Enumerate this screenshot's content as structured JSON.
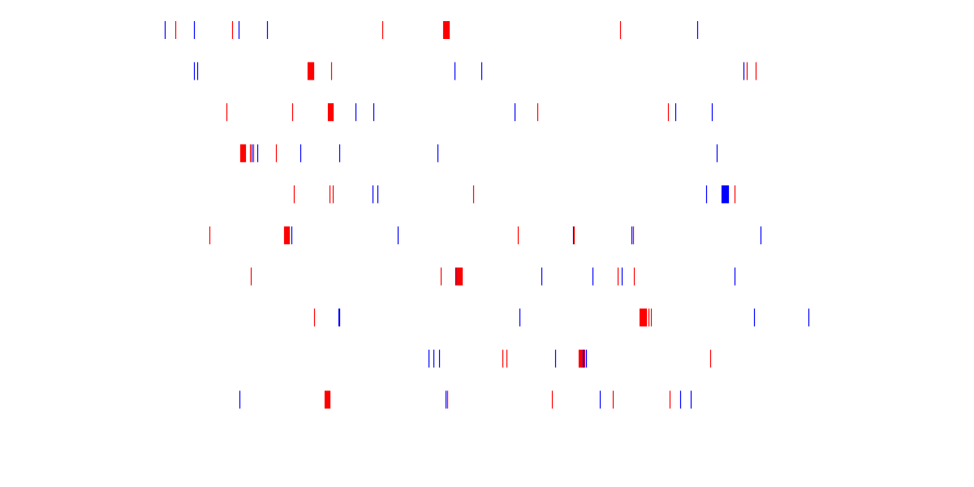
{
  "chart_data": {
    "type": "event-raster",
    "axes_visible": false,
    "grid": false,
    "xlim": [
      0,
      1200
    ],
    "colors": {
      "red": "#ff0000",
      "blue": "#0000ff"
    },
    "rows": [
      {
        "row": 1,
        "events": [
          {
            "x": 203,
            "color": "blue"
          },
          {
            "x": 216,
            "color": "red"
          },
          {
            "x": 239,
            "color": "blue"
          },
          {
            "x": 286,
            "color": "red"
          },
          {
            "x": 294,
            "color": "blue"
          },
          {
            "x": 329,
            "color": "blue"
          },
          {
            "x": 471,
            "color": "red"
          },
          {
            "x": 546,
            "color": "red"
          },
          {
            "x": 547,
            "color": "red"
          },
          {
            "x": 548,
            "color": "red"
          },
          {
            "x": 549,
            "color": "red"
          },
          {
            "x": 550,
            "color": "red"
          },
          {
            "x": 551,
            "color": "red"
          },
          {
            "x": 552,
            "color": "red"
          },
          {
            "x": 553,
            "color": "red"
          },
          {
            "x": 764,
            "color": "red"
          },
          {
            "x": 859,
            "color": "blue"
          }
        ]
      },
      {
        "row": 2,
        "events": [
          {
            "x": 239,
            "color": "blue"
          },
          {
            "x": 243,
            "color": "blue"
          },
          {
            "x": 379,
            "color": "red"
          },
          {
            "x": 380,
            "color": "red"
          },
          {
            "x": 381,
            "color": "red"
          },
          {
            "x": 382,
            "color": "red"
          },
          {
            "x": 383,
            "color": "red"
          },
          {
            "x": 384,
            "color": "red"
          },
          {
            "x": 385,
            "color": "red"
          },
          {
            "x": 386,
            "color": "red"
          },
          {
            "x": 408,
            "color": "red"
          },
          {
            "x": 560,
            "color": "blue"
          },
          {
            "x": 593,
            "color": "blue"
          },
          {
            "x": 916,
            "color": "blue"
          },
          {
            "x": 920,
            "color": "red"
          },
          {
            "x": 931,
            "color": "red"
          }
        ]
      },
      {
        "row": 3,
        "events": [
          {
            "x": 279,
            "color": "red"
          },
          {
            "x": 360,
            "color": "red"
          },
          {
            "x": 404,
            "color": "red"
          },
          {
            "x": 405,
            "color": "red"
          },
          {
            "x": 406,
            "color": "red"
          },
          {
            "x": 407,
            "color": "red"
          },
          {
            "x": 408,
            "color": "red"
          },
          {
            "x": 409,
            "color": "red"
          },
          {
            "x": 410,
            "color": "red"
          },
          {
            "x": 438,
            "color": "blue"
          },
          {
            "x": 460,
            "color": "blue"
          },
          {
            "x": 634,
            "color": "blue"
          },
          {
            "x": 662,
            "color": "red"
          },
          {
            "x": 823,
            "color": "red"
          },
          {
            "x": 832,
            "color": "blue"
          },
          {
            "x": 877,
            "color": "blue"
          }
        ]
      },
      {
        "row": 4,
        "events": [
          {
            "x": 296,
            "color": "red"
          },
          {
            "x": 297,
            "color": "red"
          },
          {
            "x": 298,
            "color": "red"
          },
          {
            "x": 299,
            "color": "red"
          },
          {
            "x": 300,
            "color": "red"
          },
          {
            "x": 301,
            "color": "red"
          },
          {
            "x": 302,
            "color": "red"
          },
          {
            "x": 308,
            "color": "red"
          },
          {
            "x": 310,
            "color": "blue"
          },
          {
            "x": 312,
            "color": "red"
          },
          {
            "x": 317,
            "color": "blue"
          },
          {
            "x": 340,
            "color": "red"
          },
          {
            "x": 370,
            "color": "blue"
          },
          {
            "x": 418,
            "color": "blue"
          },
          {
            "x": 539,
            "color": "blue"
          },
          {
            "x": 883,
            "color": "blue"
          }
        ]
      },
      {
        "row": 5,
        "events": [
          {
            "x": 362,
            "color": "red"
          },
          {
            "x": 406,
            "color": "red"
          },
          {
            "x": 410,
            "color": "red"
          },
          {
            "x": 459,
            "color": "blue"
          },
          {
            "x": 465,
            "color": "blue"
          },
          {
            "x": 583,
            "color": "red"
          },
          {
            "x": 870,
            "color": "blue"
          },
          {
            "x": 889,
            "color": "blue"
          },
          {
            "x": 890,
            "color": "blue"
          },
          {
            "x": 891,
            "color": "blue"
          },
          {
            "x": 892,
            "color": "blue"
          },
          {
            "x": 893,
            "color": "blue"
          },
          {
            "x": 894,
            "color": "blue"
          },
          {
            "x": 895,
            "color": "blue"
          },
          {
            "x": 896,
            "color": "blue"
          },
          {
            "x": 897,
            "color": "blue"
          },
          {
            "x": 905,
            "color": "red"
          }
        ]
      },
      {
        "row": 6,
        "events": [
          {
            "x": 258,
            "color": "red"
          },
          {
            "x": 350,
            "color": "red"
          },
          {
            "x": 351,
            "color": "red"
          },
          {
            "x": 352,
            "color": "red"
          },
          {
            "x": 353,
            "color": "red"
          },
          {
            "x": 354,
            "color": "red"
          },
          {
            "x": 355,
            "color": "red"
          },
          {
            "x": 356,
            "color": "red"
          },
          {
            "x": 359,
            "color": "blue"
          },
          {
            "x": 490,
            "color": "blue"
          },
          {
            "x": 638,
            "color": "red"
          },
          {
            "x": 706,
            "color": "blue"
          },
          {
            "x": 707,
            "color": "red"
          },
          {
            "x": 778,
            "color": "blue"
          },
          {
            "x": 780,
            "color": "red"
          },
          {
            "x": 937,
            "color": "blue"
          }
        ]
      },
      {
        "row": 7,
        "events": [
          {
            "x": 309,
            "color": "red"
          },
          {
            "x": 543,
            "color": "red"
          },
          {
            "x": 561,
            "color": "blue"
          },
          {
            "x": 562,
            "color": "red"
          },
          {
            "x": 563,
            "color": "red"
          },
          {
            "x": 564,
            "color": "red"
          },
          {
            "x": 565,
            "color": "red"
          },
          {
            "x": 566,
            "color": "red"
          },
          {
            "x": 567,
            "color": "red"
          },
          {
            "x": 568,
            "color": "red"
          },
          {
            "x": 569,
            "color": "red"
          },
          {
            "x": 667,
            "color": "blue"
          },
          {
            "x": 730,
            "color": "blue"
          },
          {
            "x": 761,
            "color": "red"
          },
          {
            "x": 766,
            "color": "blue"
          },
          {
            "x": 781,
            "color": "red"
          },
          {
            "x": 905,
            "color": "blue"
          }
        ]
      },
      {
        "row": 8,
        "events": [
          {
            "x": 387,
            "color": "red"
          },
          {
            "x": 417,
            "color": "blue"
          },
          {
            "x": 418,
            "color": "blue"
          },
          {
            "x": 640,
            "color": "blue"
          },
          {
            "x": 788,
            "color": "red"
          },
          {
            "x": 789,
            "color": "red"
          },
          {
            "x": 790,
            "color": "red"
          },
          {
            "x": 791,
            "color": "red"
          },
          {
            "x": 792,
            "color": "red"
          },
          {
            "x": 793,
            "color": "red"
          },
          {
            "x": 794,
            "color": "red"
          },
          {
            "x": 795,
            "color": "red"
          },
          {
            "x": 796,
            "color": "red"
          },
          {
            "x": 799,
            "color": "red"
          },
          {
            "x": 802,
            "color": "red"
          },
          {
            "x": 929,
            "color": "blue"
          },
          {
            "x": 996,
            "color": "blue"
          }
        ]
      },
      {
        "row": 9,
        "events": [
          {
            "x": 528,
            "color": "blue"
          },
          {
            "x": 534,
            "color": "blue"
          },
          {
            "x": 541,
            "color": "blue"
          },
          {
            "x": 619,
            "color": "red"
          },
          {
            "x": 624,
            "color": "red"
          },
          {
            "x": 684,
            "color": "blue"
          },
          {
            "x": 713,
            "color": "red"
          },
          {
            "x": 714,
            "color": "red"
          },
          {
            "x": 715,
            "color": "red"
          },
          {
            "x": 716,
            "color": "red"
          },
          {
            "x": 717,
            "color": "red"
          },
          {
            "x": 718,
            "color": "blue"
          },
          {
            "x": 719,
            "color": "blue"
          },
          {
            "x": 720,
            "color": "red"
          },
          {
            "x": 722,
            "color": "blue"
          },
          {
            "x": 875,
            "color": "red"
          }
        ]
      },
      {
        "row": 10,
        "events": [
          {
            "x": 295,
            "color": "blue"
          },
          {
            "x": 400,
            "color": "red"
          },
          {
            "x": 401,
            "color": "red"
          },
          {
            "x": 402,
            "color": "red"
          },
          {
            "x": 403,
            "color": "red"
          },
          {
            "x": 404,
            "color": "red"
          },
          {
            "x": 405,
            "color": "red"
          },
          {
            "x": 406,
            "color": "red"
          },
          {
            "x": 549,
            "color": "blue"
          },
          {
            "x": 551,
            "color": "red"
          },
          {
            "x": 680,
            "color": "red"
          },
          {
            "x": 739,
            "color": "blue"
          },
          {
            "x": 755,
            "color": "red"
          },
          {
            "x": 825,
            "color": "red"
          },
          {
            "x": 838,
            "color": "blue"
          },
          {
            "x": 851,
            "color": "blue"
          }
        ]
      }
    ]
  }
}
